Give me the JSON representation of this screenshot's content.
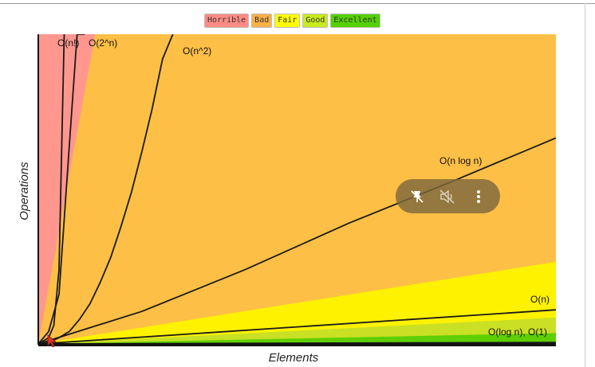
{
  "legend": [
    {
      "label": "Horrible",
      "color": "#ff8c84"
    },
    {
      "label": "Bad",
      "color": "#fdb046"
    },
    {
      "label": "Fair",
      "color": "#ffff00"
    },
    {
      "label": "Good",
      "color": "#c8ea20"
    },
    {
      "label": "Excellent",
      "color": "#53d100"
    }
  ],
  "chart_data": {
    "type": "line",
    "title": "",
    "xlabel": "Elements",
    "ylabel": "Operations",
    "xlim": [
      0,
      100
    ],
    "ylim": [
      0,
      100
    ],
    "grid": false,
    "legend_placement": "top-center",
    "regions": [
      {
        "name": "Horrible",
        "color": "#ff978f"
      },
      {
        "name": "Bad",
        "color": "#fdbf46"
      },
      {
        "name": "Fair",
        "color": "#fff200"
      },
      {
        "name": "Good",
        "color": "#c9e024"
      },
      {
        "name": "Excellent",
        "color": "#5fcf00"
      }
    ],
    "series": [
      {
        "name": "O(n!)",
        "x": [
          0,
          2,
          3,
          4,
          5
        ],
        "y": [
          0,
          2,
          6,
          24,
          100
        ]
      },
      {
        "name": "O(2^n)",
        "x": [
          0,
          2,
          4,
          6,
          7.5,
          9
        ],
        "y": [
          0,
          4,
          16,
          64,
          100,
          100
        ]
      },
      {
        "name": "O(n^2)",
        "x": [
          0,
          2,
          4,
          6,
          8,
          10,
          12,
          14,
          16,
          18,
          20,
          22,
          24,
          26
        ],
        "y": [
          0,
          0.5,
          2,
          4,
          8,
          13,
          20,
          28,
          38,
          49,
          62,
          76,
          92,
          100
        ]
      },
      {
        "name": "O(n log n)",
        "x": [
          0,
          20,
          40,
          60,
          80,
          100
        ],
        "y": [
          0,
          10.5,
          24,
          39,
          52.5,
          66.5
        ]
      },
      {
        "name": "O(n)",
        "x": [
          0,
          100
        ],
        "y": [
          0,
          11
        ]
      },
      {
        "name": "O(log n), O(1)",
        "x": [
          0,
          100
        ],
        "y": [
          0,
          0.5
        ]
      }
    ],
    "annotations": [
      "O(n!)",
      "O(2^n)",
      "O(n^2)",
      "O(n log n)",
      "O(n)",
      "O(log n), O(1)"
    ]
  },
  "overlay": {
    "buttons": [
      {
        "name": "unpin-icon"
      },
      {
        "name": "mute-icon"
      },
      {
        "name": "more-options-icon"
      }
    ]
  }
}
